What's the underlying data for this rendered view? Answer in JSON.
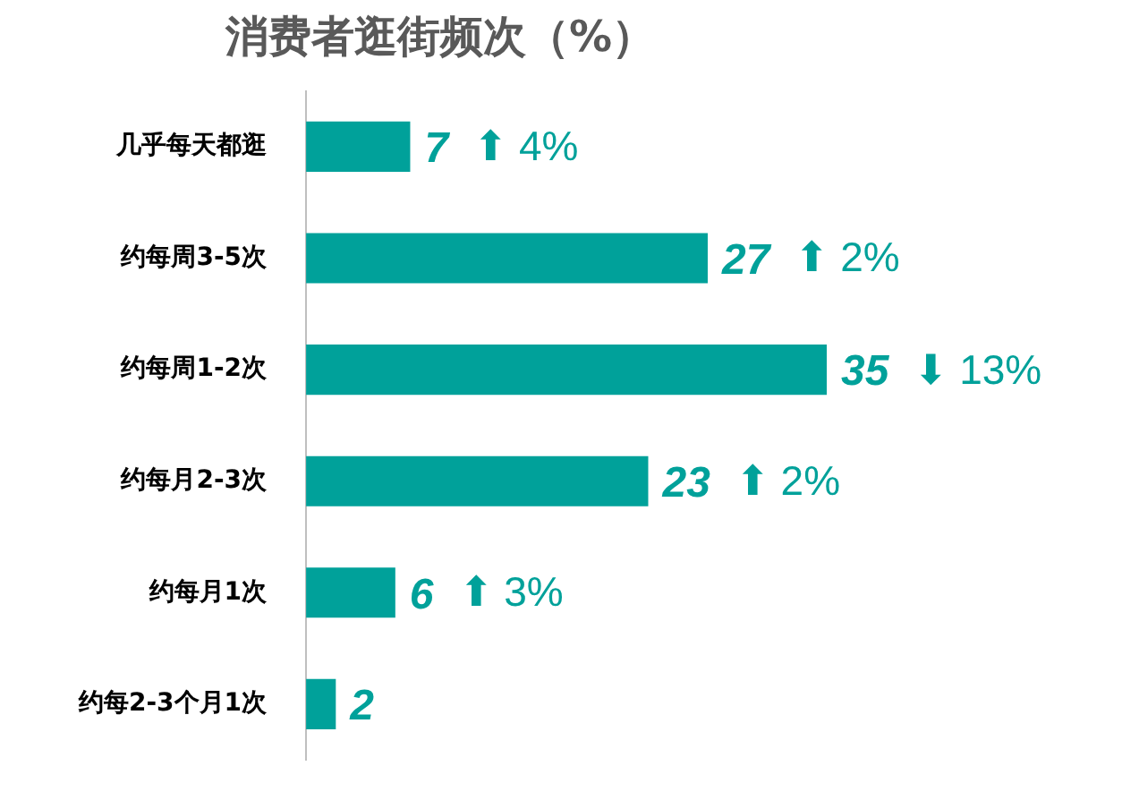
{
  "chart_data": {
    "type": "bar",
    "orientation": "horizontal",
    "title": "消费者逛街频次（%）",
    "categories": [
      "几乎每天都逛",
      "约每周3-5次",
      "约每周1-2次",
      "约每月2-3次",
      "约每月1次",
      "约每2-3个月1次"
    ],
    "values": [
      7,
      27,
      35,
      23,
      6,
      2
    ],
    "color": "#00a19a",
    "tick_labels": "y",
    "legend": false,
    "data_labels": true,
    "annotations": [
      "⬆ 4%",
      "⬆ 2%",
      "⬇ 13%",
      "⬆ 2%",
      "⬆ 3%"
    ]
  }
}
